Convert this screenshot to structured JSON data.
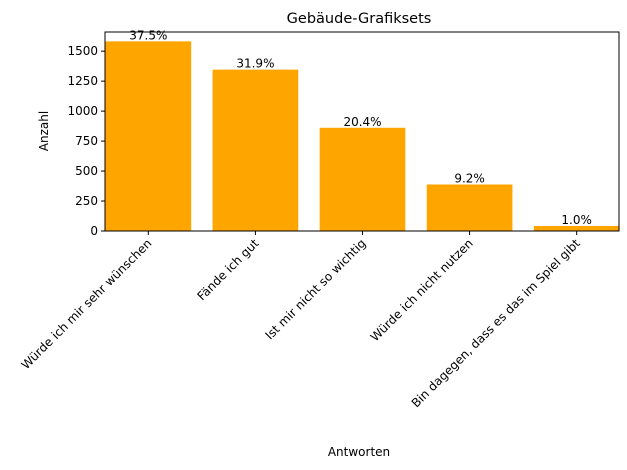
{
  "chart_data": {
    "type": "bar",
    "title": "Gebäude-Grafiksets",
    "xlabel": "Antworten",
    "ylabel": "Anzahl",
    "categories": [
      "Würde ich mir sehr wünschen",
      "Fände ich gut",
      "Ist mir nicht so wichtig",
      "Würde ich nicht nutzen",
      "Bin dagegen, dass es das im Spiel gibt"
    ],
    "values": [
      1582,
      1346,
      861,
      388,
      42
    ],
    "bar_labels": [
      "37.5%",
      "31.9%",
      "20.4%",
      "9.2%",
      "1.0%"
    ],
    "yticks": [
      "0",
      "250",
      "500",
      "750",
      "1000",
      "1250",
      "1500"
    ],
    "ylim": [
      0,
      1660
    ],
    "bar_color": "#FFA500",
    "grid": false,
    "legend": false
  }
}
